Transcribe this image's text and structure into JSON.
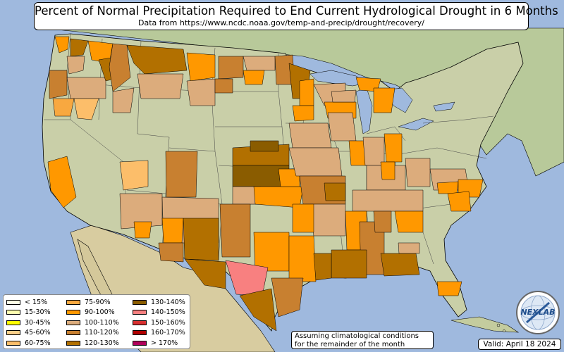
{
  "header": {
    "title": "Percent of Normal Precipitation Required to End Current Hydrological Drought in 6 Months",
    "subtitle": "Data from https://www.ncdc.noaa.gov/temp-and-precip/drought/recovery/"
  },
  "legend": {
    "items": [
      {
        "label": "< 15%",
        "color": "#ffffe5"
      },
      {
        "label": "15-30%",
        "color": "#ffffb0"
      },
      {
        "label": "30-45%",
        "color": "#ffff00"
      },
      {
        "label": "45-60%",
        "color": "#fcd08a"
      },
      {
        "label": "60-75%",
        "color": "#fcbe6a"
      },
      {
        "label": "75-90%",
        "color": "#f8a840"
      },
      {
        "label": "90-100%",
        "color": "#ff9800"
      },
      {
        "label": "100-110%",
        "color": "#dcac7c"
      },
      {
        "label": "110-120%",
        "color": "#c88030"
      },
      {
        "label": "120-130%",
        "color": "#b27000"
      },
      {
        "label": "130-140%",
        "color": "#8a5c00"
      },
      {
        "label": "140-150%",
        "color": "#f88080"
      },
      {
        "label": "150-160%",
        "color": "#d83030"
      },
      {
        "label": "160-170%",
        "color": "#b00000"
      },
      {
        "label": "> 170%",
        "color": "#b0005a"
      }
    ]
  },
  "note": {
    "line1": "Assuming climatological conditions",
    "line2": "for the remainder of the month"
  },
  "valid_label": "Valid: April 18 2024",
  "logo": {
    "text": "NEXLAB",
    "icon": "nexlab-globe-icon"
  },
  "colors": {
    "ocean": "#9fb9de",
    "land": "#c9cfa8",
    "canada": "#b8c99a",
    "mexico": "#d8cca0"
  }
}
